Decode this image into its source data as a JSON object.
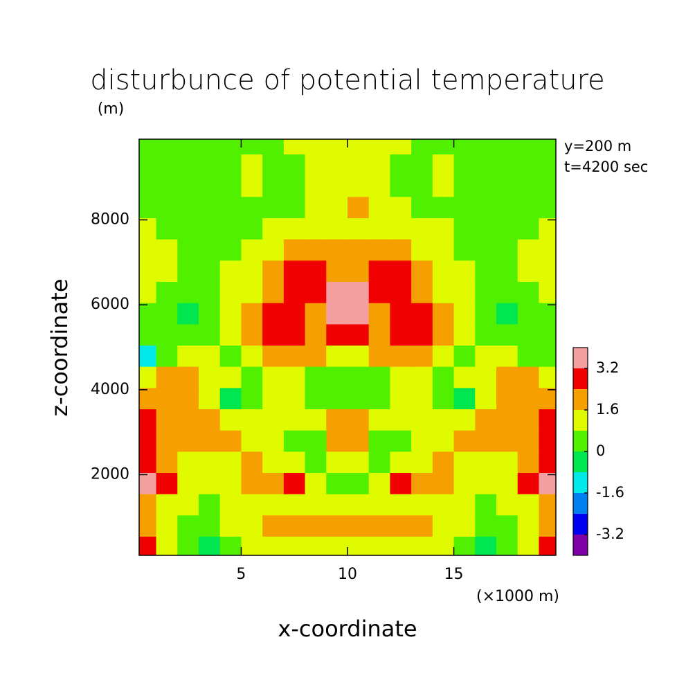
{
  "chart_data": {
    "type": "contourf",
    "title": "disturbunce of potential temperature",
    "xlabel": "x-coordinate",
    "ylabel": "z-coordinate",
    "ylabel_unit": "(m)",
    "xlabel_unit": "(×1000 m)",
    "annotations": [
      "y=200 m",
      "t=4200 sec"
    ],
    "xlim": [
      0.2,
      19.8
    ],
    "ylim": [
      100,
      9900
    ],
    "xticks": [
      5,
      10,
      15
    ],
    "yticks": [
      2000,
      4000,
      6000,
      8000
    ],
    "levels": [
      -3.2,
      -2.4,
      -1.6,
      -0.8,
      0,
      0.8,
      1.6,
      2.4,
      3.2
    ],
    "colors": [
      "#8000a8",
      "#0000f0",
      "#0080f0",
      "#00e8e8",
      "#00e650",
      "#50f000",
      "#e0fa00",
      "#f5a000",
      "#f00000",
      "#f4a0a0"
    ],
    "colorbar_ticks": [
      -3.2,
      -1.6,
      0,
      1.6,
      3.2
    ],
    "x": [
      0.5,
      1.5,
      2.5,
      3.5,
      4.5,
      5.5,
      6.5,
      7.5,
      8.5,
      9.5,
      10.5,
      11.5,
      12.5,
      13.5,
      14.5,
      15.5,
      16.5,
      17.5,
      18.5,
      19.5
    ],
    "z": [
      300,
      800,
      1300,
      1800,
      2300,
      2800,
      3300,
      3800,
      4300,
      4800,
      5300,
      5800,
      6300,
      6800,
      7300,
      7800,
      8300,
      8800,
      9300,
      9800
    ],
    "values": [
      [
        2.6,
        1.2,
        0.5,
        -0.2,
        0.5,
        1.2,
        1.2,
        1.2,
        1.2,
        1.2,
        1.2,
        1.2,
        1.2,
        1.2,
        1.2,
        0.5,
        -0.2,
        0.5,
        1.2,
        2.6
      ],
      [
        1.8,
        1.2,
        0.5,
        0.5,
        1.2,
        1.3,
        1.8,
        1.8,
        1.8,
        1.9,
        1.9,
        1.8,
        1.8,
        1.8,
        1.3,
        1.2,
        0.5,
        0.5,
        1.2,
        1.8
      ],
      [
        1.8,
        1.3,
        1.0,
        0.5,
        1.0,
        1.2,
        1.2,
        1.0,
        1.2,
        1.0,
        1.0,
        1.2,
        1.0,
        1.2,
        1.2,
        1.0,
        0.5,
        1.0,
        1.3,
        1.8
      ],
      [
        3.4,
        2.6,
        1.3,
        1.2,
        1.0,
        1.8,
        1.8,
        2.6,
        1.0,
        0.5,
        0.5,
        1.0,
        2.6,
        1.8,
        1.8,
        1.0,
        1.2,
        1.3,
        2.6,
        3.4
      ],
      [
        2.8,
        2.2,
        1.3,
        1.2,
        1.3,
        1.8,
        1.2,
        1.0,
        0.5,
        1.0,
        1.0,
        0.5,
        1.0,
        1.2,
        1.8,
        1.3,
        1.2,
        1.3,
        2.2,
        2.8
      ],
      [
        2.7,
        2.0,
        1.8,
        1.8,
        1.8,
        1.2,
        1.2,
        0.6,
        0.6,
        1.8,
        1.8,
        0.6,
        0.6,
        1.2,
        1.2,
        1.8,
        1.8,
        1.8,
        2.0,
        2.7
      ],
      [
        2.6,
        2.0,
        1.8,
        1.8,
        1.2,
        1.0,
        1.2,
        1.2,
        1.0,
        1.8,
        1.8,
        1.0,
        1.2,
        1.2,
        1.0,
        1.2,
        1.8,
        1.8,
        2.0,
        2.6
      ],
      [
        1.8,
        1.9,
        1.7,
        1.2,
        -0.2,
        0.5,
        1.2,
        1.2,
        0.6,
        0.5,
        0.5,
        0.6,
        1.2,
        1.2,
        0.5,
        -0.2,
        1.2,
        1.7,
        1.9,
        1.8
      ],
      [
        1.2,
        1.8,
        1.8,
        1.2,
        1.0,
        0.6,
        1.0,
        1.2,
        0.8,
        0.5,
        0.5,
        0.8,
        1.2,
        1.0,
        0.6,
        1.0,
        1.2,
        1.8,
        1.8,
        1.2
      ],
      [
        -1.0,
        0.5,
        1.0,
        1.0,
        0.6,
        1.2,
        1.8,
        1.8,
        1.7,
        1.5,
        1.5,
        1.7,
        1.8,
        1.8,
        1.2,
        0.6,
        1.0,
        1.0,
        0.5,
        0.3
      ],
      [
        0.3,
        0.5,
        0.5,
        0.6,
        1.0,
        1.8,
        2.6,
        2.6,
        2.3,
        2.7,
        2.7,
        2.3,
        2.6,
        2.6,
        1.8,
        1.0,
        0.6,
        0.5,
        0.5,
        0.3
      ],
      [
        0.6,
        0.5,
        -0.2,
        0.3,
        1.0,
        1.8,
        2.7,
        2.7,
        2.4,
        3.4,
        3.4,
        2.4,
        2.7,
        2.7,
        1.8,
        1.0,
        0.3,
        -0.2,
        0.5,
        0.6
      ],
      [
        1.0,
        0.6,
        0.5,
        0.5,
        1.0,
        1.5,
        2.2,
        2.7,
        2.6,
        3.5,
        3.5,
        2.6,
        2.7,
        2.2,
        1.5,
        1.0,
        0.5,
        0.5,
        0.6,
        1.0
      ],
      [
        1.2,
        1.0,
        0.6,
        0.5,
        1.0,
        1.4,
        2.0,
        2.6,
        2.6,
        2.2,
        2.2,
        2.6,
        2.6,
        2.0,
        1.4,
        1.0,
        0.5,
        0.6,
        1.0,
        1.2
      ],
      [
        1.2,
        1.0,
        0.5,
        0.5,
        0.6,
        1.0,
        1.3,
        1.8,
        1.9,
        1.8,
        1.8,
        1.9,
        1.8,
        1.3,
        1.0,
        0.6,
        0.5,
        0.5,
        1.0,
        1.2
      ],
      [
        1.0,
        0.6,
        0.5,
        0.5,
        0.5,
        0.6,
        1.0,
        1.2,
        1.2,
        1.2,
        1.2,
        1.2,
        1.2,
        1.2,
        1.0,
        0.6,
        0.5,
        0.5,
        0.6,
        1.0
      ],
      [
        0.5,
        0.5,
        0.5,
        0.5,
        0.5,
        0.5,
        0.5,
        0.6,
        1.0,
        1.2,
        1.7,
        1.2,
        1.0,
        0.6,
        0.5,
        0.5,
        0.5,
        0.5,
        0.5,
        0.5
      ],
      [
        0.5,
        0.5,
        0.5,
        0.5,
        0.5,
        1.0,
        0.5,
        0.6,
        1.0,
        1.2,
        1.2,
        1.0,
        0.6,
        0.5,
        1.0,
        0.5,
        0.5,
        0.5,
        0.5,
        0.5
      ],
      [
        0.5,
        0.5,
        0.5,
        0.5,
        0.5,
        1.0,
        0.6,
        0.5,
        1.1,
        1.2,
        1.2,
        1.1,
        0.5,
        0.6,
        1.0,
        0.5,
        0.5,
        0.5,
        0.5,
        0.5
      ],
      [
        0.5,
        0.5,
        0.5,
        0.5,
        0.5,
        0.5,
        0.6,
        1.0,
        1.2,
        1.2,
        1.2,
        1.2,
        1.0,
        0.6,
        0.5,
        0.5,
        0.5,
        0.5,
        0.5,
        0.5
      ]
    ]
  }
}
